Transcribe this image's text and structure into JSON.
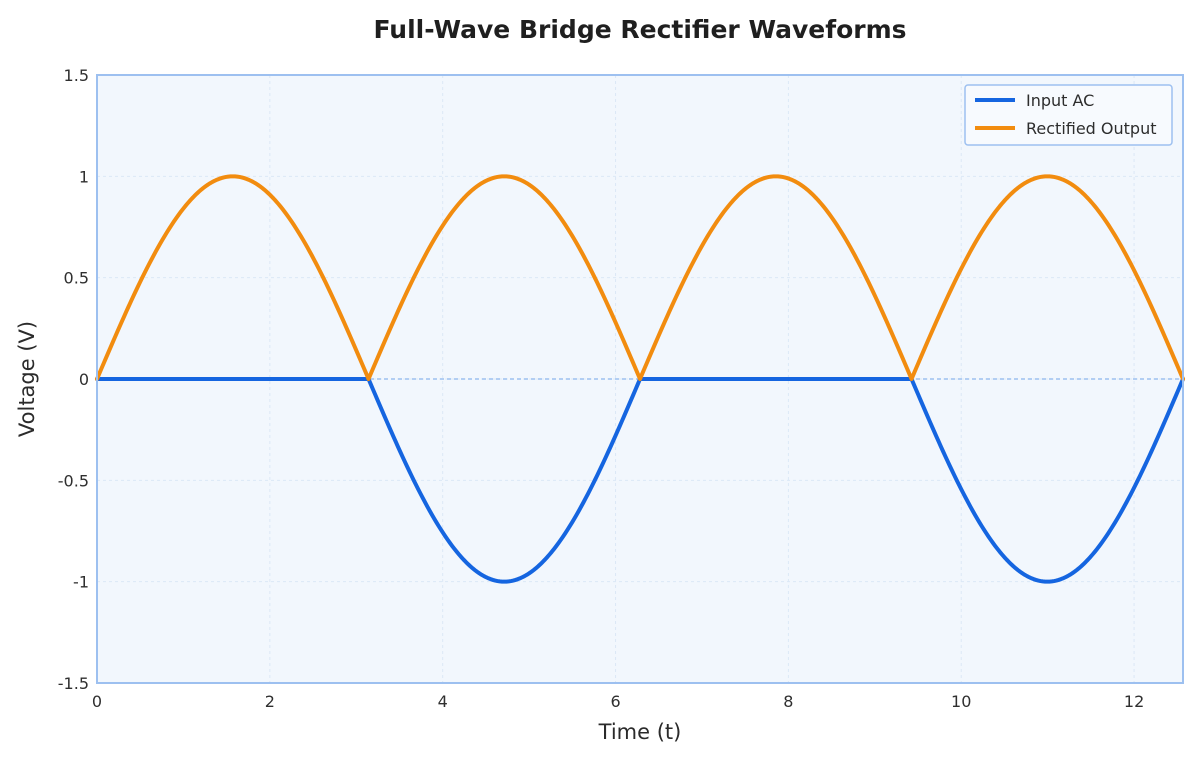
{
  "chart_data": {
    "type": "line",
    "title": "Full-Wave Bridge Rectifier Waveforms",
    "xlabel": "Time (t)",
    "ylabel": "Voltage (V)",
    "xlim": [
      0,
      12.566
    ],
    "ylim": [
      -1.5,
      1.5
    ],
    "x_ticks": [
      0,
      2,
      4,
      6,
      8,
      10,
      12
    ],
    "x_tick_labels": [
      "0",
      "2",
      "4",
      "6",
      "8",
      "10",
      "12"
    ],
    "y_ticks": [
      1.5,
      1,
      0.5,
      0,
      -0.5,
      -1,
      -1.5
    ],
    "y_tick_labels": [
      "1.5",
      "1",
      "0.5",
      "0",
      "-0.5",
      "-1",
      "-1.5"
    ],
    "grid": true,
    "legend_position": "top-right",
    "series": [
      {
        "name": "Input AC",
        "color": "#1565e0",
        "x": [
          0,
          0.785,
          1.571,
          2.356,
          3.142,
          3.927,
          4.712,
          5.498,
          6.283,
          7.069,
          7.854,
          8.639,
          9.425,
          10.21,
          10.996,
          11.781,
          12.566
        ],
        "y": [
          0,
          0,
          0,
          0,
          0,
          -0.707,
          -1,
          -0.707,
          0,
          0,
          0,
          0,
          0,
          -0.707,
          -1,
          -0.707,
          0
        ]
      },
      {
        "name": "Rectified Output",
        "color": "#f28c0f",
        "x": [
          0,
          0.785,
          1.571,
          2.356,
          3.142,
          3.927,
          4.712,
          5.498,
          6.283,
          7.069,
          7.854,
          8.639,
          9.425,
          10.21,
          10.996,
          11.781,
          12.566
        ],
        "y": [
          0,
          0.707,
          1,
          0.707,
          0,
          0.707,
          1,
          0.707,
          0,
          0.707,
          1,
          0.707,
          0,
          0.707,
          1,
          0.707,
          0
        ]
      }
    ]
  },
  "colors": {
    "plot_background": "#f2f7fd",
    "plot_border": "#9dc0f0",
    "grid": "#dce8f6",
    "zero_line": "#9dc0f0"
  }
}
